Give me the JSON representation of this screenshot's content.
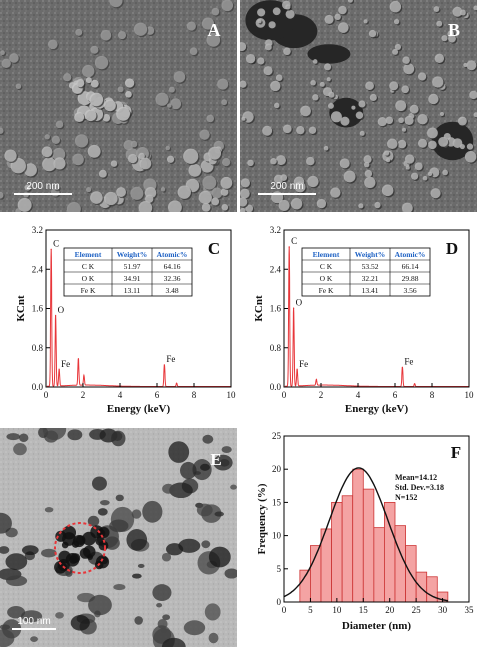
{
  "figure": {
    "colors": {
      "spectrum": "#e8363a",
      "histogram_fill": "#f4a3a3",
      "histogram_edge": "#cc3333",
      "table_header_text": "#1f62c4",
      "circle_marker": "#e8363a",
      "fit_curve": "#111111"
    },
    "panels": {
      "A": {
        "letter": "A",
        "scale_label": "200 nm",
        "kind": "SEM micrograph"
      },
      "B": {
        "letter": "B",
        "scale_label": "200 nm",
        "kind": "SEM micrograph"
      },
      "E": {
        "letter": "E",
        "scale_label": "100 nm",
        "kind": "TEM micrograph"
      }
    }
  },
  "chart_data": [
    {
      "id": "C",
      "letter": "C",
      "type": "line",
      "xlabel": "Energy (keV)",
      "ylabel": "KCnt",
      "xlim": [
        0,
        10
      ],
      "ylim": [
        0,
        3.2
      ],
      "x_ticks": [
        "0",
        "2",
        "4",
        "6",
        "8",
        "10"
      ],
      "y_ticks": [
        "0.0",
        "0.8",
        "1.6",
        "2.4",
        "3.2"
      ],
      "peaks": [
        {
          "label": "C",
          "x": 0.28,
          "y": 2.8
        },
        {
          "label": "O",
          "x": 0.52,
          "y": 1.45
        },
        {
          "label": "Fe",
          "x": 0.71,
          "y": 0.35
        },
        {
          "label": "",
          "x": 1.75,
          "y": 0.55
        },
        {
          "label": "",
          "x": 2.05,
          "y": 0.2
        },
        {
          "label": "Fe",
          "x": 6.4,
          "y": 0.45
        },
        {
          "label": "",
          "x": 7.06,
          "y": 0.07
        }
      ],
      "table": {
        "headers": [
          "Element",
          "Weight%",
          "Atomic%"
        ],
        "rows": [
          [
            "C K",
            "51.97",
            "64.16"
          ],
          [
            "O K",
            "34.91",
            "32.36"
          ],
          [
            "Fe K",
            "13.11",
            "3.48"
          ]
        ]
      }
    },
    {
      "id": "D",
      "letter": "D",
      "type": "line",
      "xlabel": "Energy (keV)",
      "ylabel": "KCnt",
      "xlim": [
        0,
        10
      ],
      "ylim": [
        0,
        3.2
      ],
      "x_ticks": [
        "0",
        "2",
        "4",
        "6",
        "8",
        "10"
      ],
      "y_ticks": [
        "0.0",
        "0.8",
        "1.6",
        "2.4",
        "3.2"
      ],
      "peaks": [
        {
          "label": "C",
          "x": 0.28,
          "y": 2.85
        },
        {
          "label": "O",
          "x": 0.52,
          "y": 1.6
        },
        {
          "label": "Fe",
          "x": 0.71,
          "y": 0.35
        },
        {
          "label": "",
          "x": 1.75,
          "y": 0.12
        },
        {
          "label": "Fe",
          "x": 6.4,
          "y": 0.4
        },
        {
          "label": "",
          "x": 7.06,
          "y": 0.06
        }
      ],
      "table": {
        "headers": [
          "Element",
          "Weight%",
          "Atomic%"
        ],
        "rows": [
          [
            "C K",
            "53.52",
            "66.14"
          ],
          [
            "O K",
            "32.21",
            "29.88"
          ],
          [
            "Fe K",
            "13.41",
            "3.56"
          ]
        ]
      }
    },
    {
      "id": "F",
      "letter": "F",
      "type": "bar",
      "xlabel": "Diameter (nm)",
      "ylabel": "Frequency (%)",
      "xlim": [
        0,
        35
      ],
      "ylim": [
        0,
        25
      ],
      "x_ticks": [
        "0",
        "5",
        "10",
        "15",
        "20",
        "25",
        "30",
        "35"
      ],
      "y_ticks": [
        "0",
        "5",
        "10",
        "15",
        "20",
        "25"
      ],
      "bin_width": 2,
      "bins": [
        {
          "start": 3,
          "value": 4.8
        },
        {
          "start": 5,
          "value": 8.5
        },
        {
          "start": 7,
          "value": 11
        },
        {
          "start": 9,
          "value": 15
        },
        {
          "start": 11,
          "value": 16
        },
        {
          "start": 13,
          "value": 20
        },
        {
          "start": 15,
          "value": 17
        },
        {
          "start": 17,
          "value": 11.2
        },
        {
          "start": 19,
          "value": 15
        },
        {
          "start": 21,
          "value": 11.5
        },
        {
          "start": 23,
          "value": 8.5
        },
        {
          "start": 25,
          "value": 4.5
        },
        {
          "start": 27,
          "value": 3.8
        },
        {
          "start": 29,
          "value": 1.5
        }
      ],
      "fit": {
        "type": "gaussian",
        "mean": 14.12,
        "sd": 3.18,
        "peak": 20.2
      },
      "annotations": [
        "Mean=14.12",
        "Std. Dev.=3.18",
        "N=152"
      ]
    }
  ]
}
